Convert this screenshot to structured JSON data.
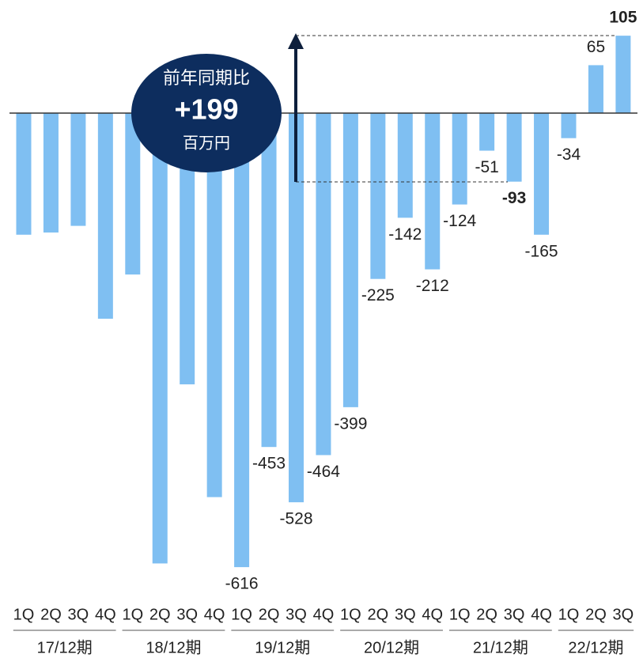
{
  "chart_data": {
    "type": "bar",
    "groups": [
      {
        "label": "17/12期",
        "quarters": [
          "1Q",
          "2Q",
          "3Q",
          "4Q"
        ]
      },
      {
        "label": "18/12期",
        "quarters": [
          "1Q",
          "2Q",
          "3Q",
          "4Q"
        ]
      },
      {
        "label": "19/12期",
        "quarters": [
          "1Q",
          "2Q",
          "3Q",
          "4Q"
        ]
      },
      {
        "label": "20/12期",
        "quarters": [
          "1Q",
          "2Q",
          "3Q",
          "4Q"
        ]
      },
      {
        "label": "21/12期",
        "quarters": [
          "1Q",
          "2Q",
          "3Q",
          "4Q"
        ]
      },
      {
        "label": "22/12期",
        "quarters": [
          "1Q",
          "2Q",
          "3Q"
        ]
      }
    ],
    "values": [
      -165,
      -162,
      -153,
      -279,
      -219,
      -611,
      -368,
      -521,
      -616,
      -453,
      -528,
      -464,
      -399,
      -225,
      -142,
      -212,
      -124,
      -51,
      -93,
      -165,
      -34,
      65,
      105
    ],
    "value_labels": [
      null,
      null,
      null,
      null,
      null,
      null,
      null,
      null,
      "-616",
      "-453",
      "-528",
      "-464",
      "-399",
      "-225",
      "-142",
      "-212",
      "-124",
      "-51",
      "-93",
      "-165",
      "-34",
      "65",
      "105"
    ],
    "color": "#7fbff2",
    "ylim": [
      -700,
      150
    ],
    "annotation": {
      "title": "前年同期比",
      "value": "+199",
      "unit": "百万円"
    }
  }
}
